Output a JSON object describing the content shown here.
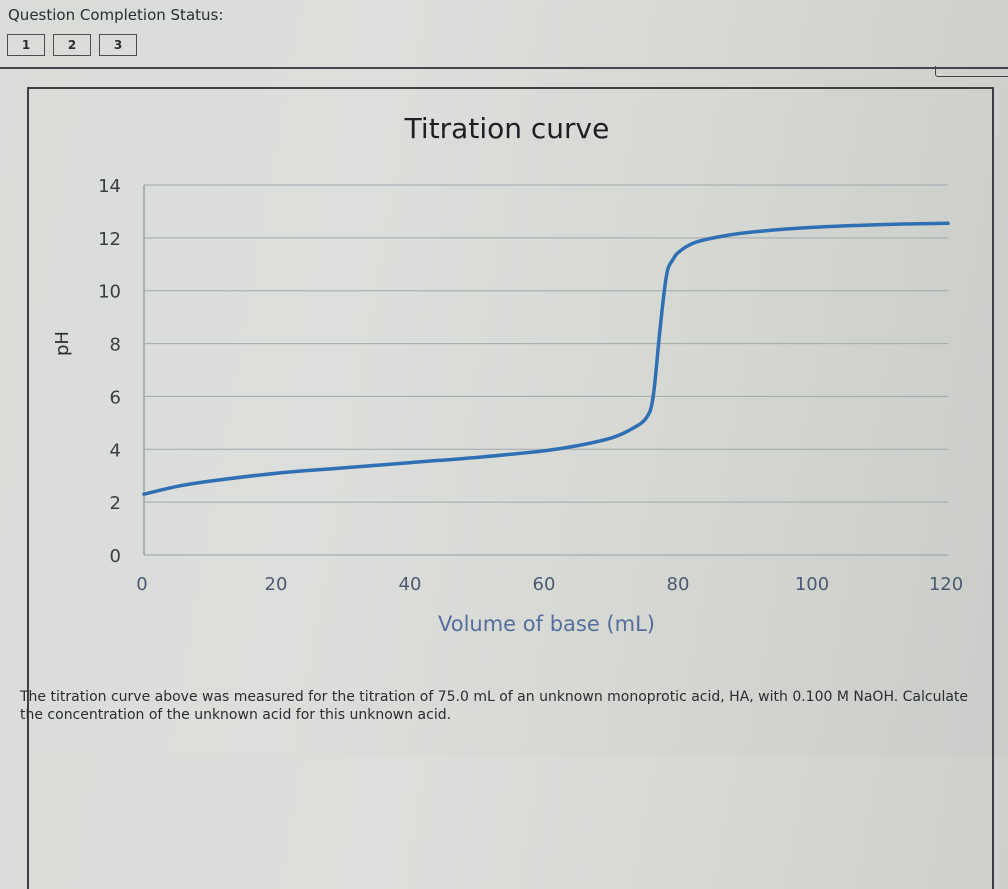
{
  "header": {
    "status_title": "Question Completion Status:",
    "questions": [
      {
        "label": "1"
      },
      {
        "label": "2"
      },
      {
        "label": "3"
      }
    ]
  },
  "chart": {
    "title": "Titration curve",
    "ylabel": "pH",
    "xlabel": "Volume of base (mL)",
    "yticks": [
      "0",
      "2",
      "4",
      "6",
      "8",
      "10",
      "12",
      "14"
    ],
    "xticks": [
      "0",
      "20",
      "40",
      "60",
      "80",
      "100",
      "120"
    ],
    "line_color": "#2f6fb3"
  },
  "question": {
    "text": "The titration curve above was measured for the titration of 75.0 mL of an unknown monoprotic acid, HA, with 0.100 M NaOH. Calculate the concentration of the unknown acid for this unknown acid."
  },
  "chart_data": {
    "type": "line",
    "title": "Titration curve",
    "xlabel": "Volume of base (mL)",
    "ylabel": "pH",
    "xlim": [
      0,
      120
    ],
    "ylim": [
      0,
      14
    ],
    "grid": {
      "horizontal": true,
      "vertical": false
    },
    "legend": null,
    "series": [
      {
        "name": "pH",
        "x": [
          0,
          5,
          10,
          20,
          30,
          40,
          50,
          60,
          65,
          70,
          73,
          75,
          76,
          77,
          78,
          79,
          80,
          82,
          85,
          90,
          100,
          110,
          120
        ],
        "y": [
          2.3,
          2.6,
          2.8,
          3.1,
          3.3,
          3.5,
          3.7,
          3.95,
          4.15,
          4.45,
          4.8,
          5.2,
          6.0,
          8.5,
          10.6,
          11.2,
          11.5,
          11.8,
          12.0,
          12.2,
          12.4,
          12.5,
          12.55
        ]
      }
    ],
    "annotations": {
      "equivalence_point_mL": 77
    }
  }
}
